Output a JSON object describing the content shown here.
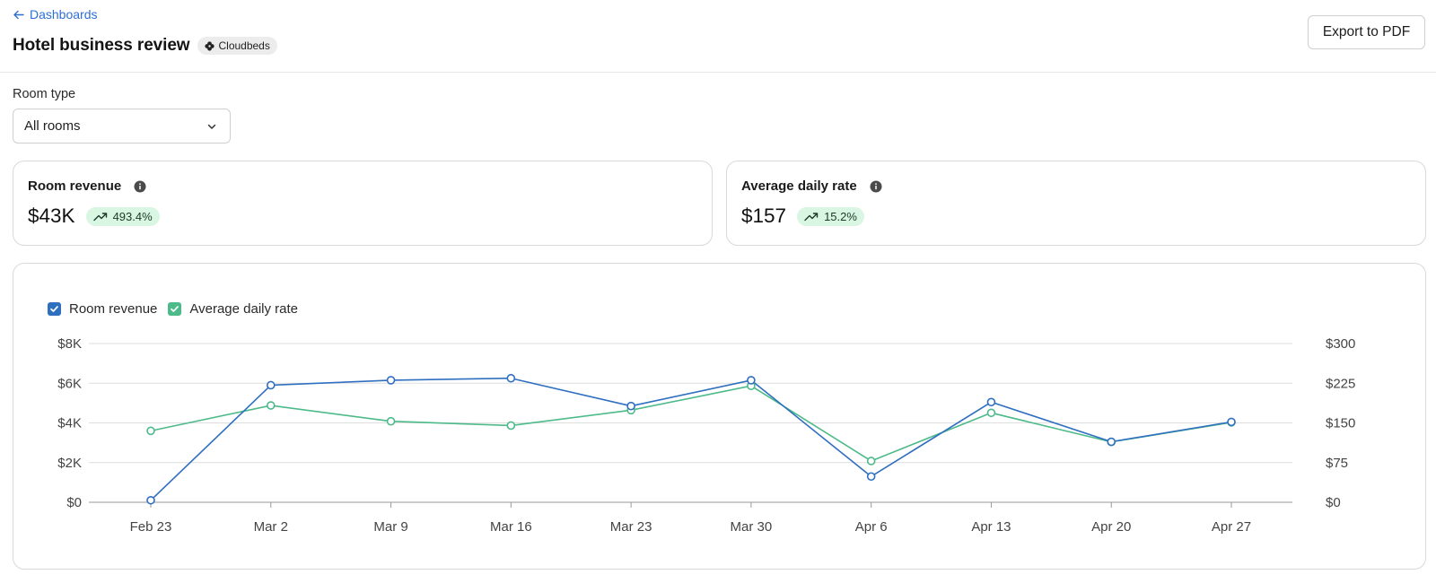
{
  "header": {
    "back_label": "Dashboards",
    "title": "Hotel business review",
    "source_badge": "Cloudbeds",
    "export_label": "Export to PDF"
  },
  "filter": {
    "label": "Room type",
    "value": "All rooms"
  },
  "kpis": [
    {
      "title": "Room revenue",
      "value": "$43K",
      "delta": "493.4%",
      "trend": "up"
    },
    {
      "title": "Average daily rate",
      "value": "$157",
      "delta": "15.2%",
      "trend": "up"
    }
  ],
  "colors": {
    "revenue": "#2f6fbf",
    "adr": "#4dba8a",
    "link": "#2f6fd1",
    "delta_bg": "#d9f6e3"
  },
  "chart_data": {
    "type": "line",
    "categories": [
      "Feb 23",
      "Mar 2",
      "Mar 9",
      "Mar 16",
      "Mar 23",
      "Mar 30",
      "Apr 6",
      "Apr 13",
      "Apr 20",
      "Apr 27"
    ],
    "series": [
      {
        "name": "Room revenue",
        "axis": "left",
        "values": [
          100,
          5900,
          6150,
          6250,
          4850,
          6150,
          1300,
          5050,
          3050,
          4050
        ]
      },
      {
        "name": "Average daily rate",
        "axis": "right",
        "values": [
          135,
          183,
          153,
          145,
          174,
          220,
          78,
          169,
          114,
          151
        ]
      }
    ],
    "y_left": {
      "ticks": [
        "$0",
        "$2K",
        "$4K",
        "$6K",
        "$8K"
      ],
      "range": [
        0,
        8000
      ]
    },
    "y_right": {
      "ticks": [
        "$0",
        "$75",
        "$150",
        "$225",
        "$300"
      ],
      "range": [
        0,
        300
      ]
    },
    "legend": "top-left",
    "grid": true
  }
}
